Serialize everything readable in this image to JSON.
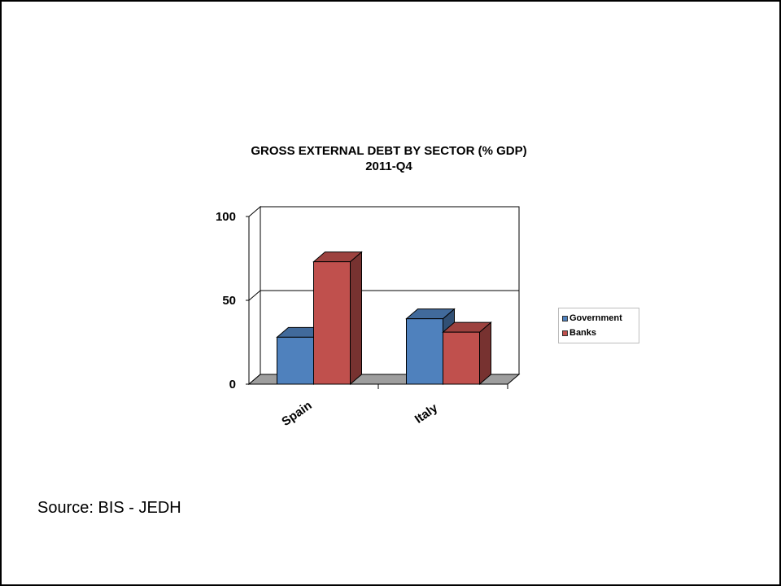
{
  "source_note": "Source: BIS - JEDH",
  "chart_data": {
    "type": "bar",
    "title": "GROSS EXTERNAL DEBT BY SECTOR (% GDP)",
    "subtitle": "2011-Q4",
    "categories": [
      "Spain",
      "Italy"
    ],
    "series": [
      {
        "name": "Government",
        "values": [
          28,
          39
        ],
        "color": "#4f81bd"
      },
      {
        "name": "Banks",
        "values": [
          73,
          31
        ],
        "color": "#c0504d"
      }
    ],
    "ylim": [
      0,
      100
    ],
    "yticks": [
      0,
      50,
      100
    ],
    "grid": true,
    "legend": "right",
    "style": "3d-clustered-column"
  }
}
